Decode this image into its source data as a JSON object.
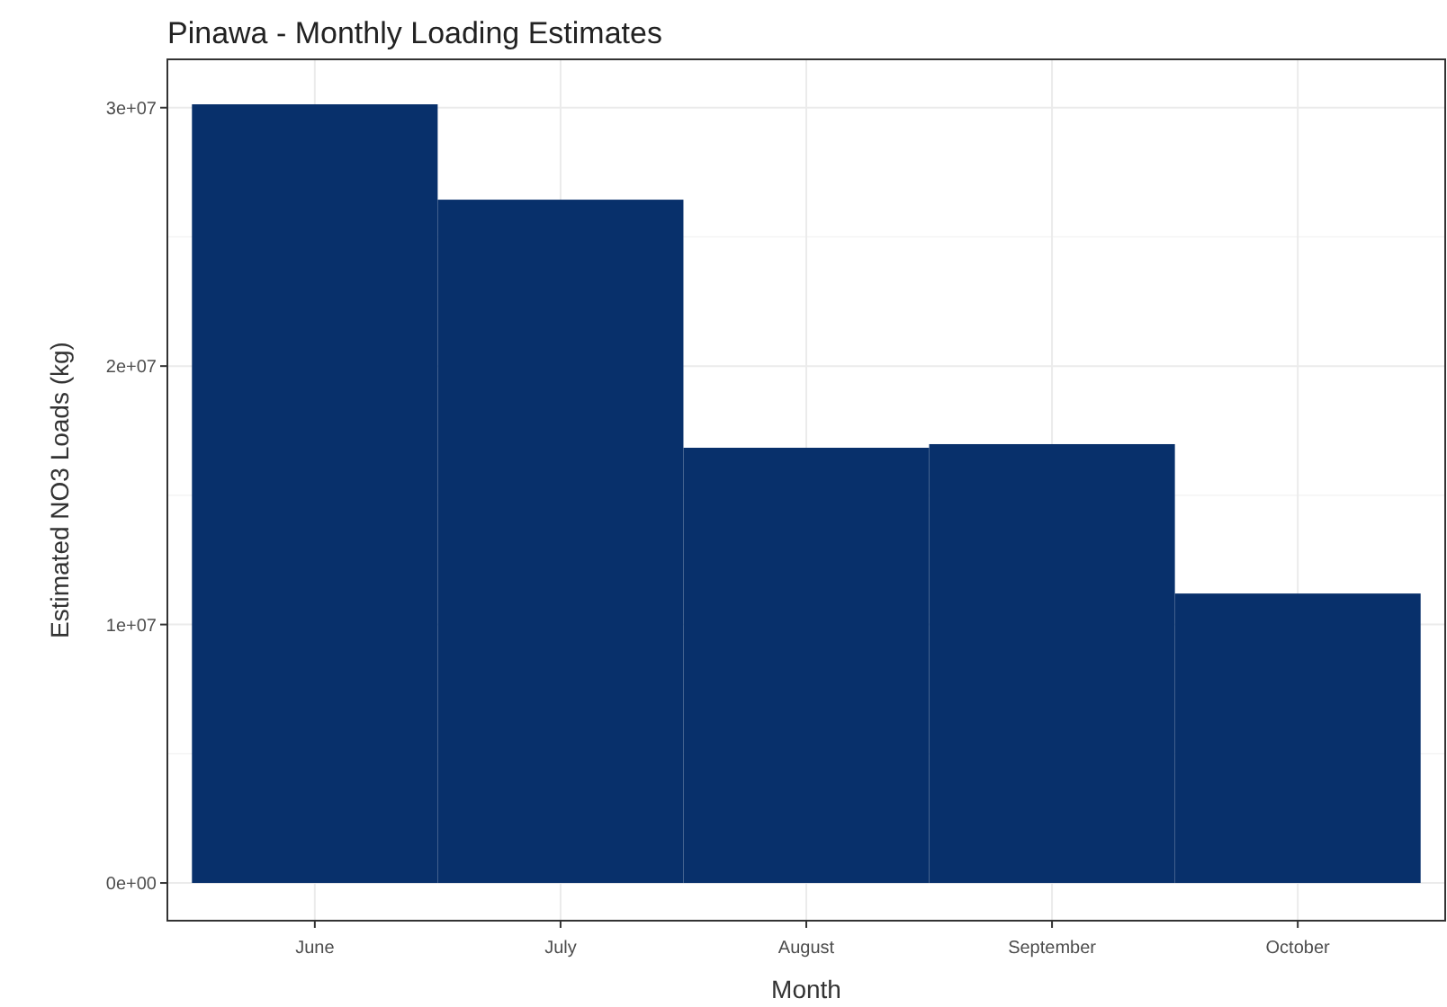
{
  "chart_data": {
    "type": "bar",
    "title": "Pinawa - Monthly Loading Estimates",
    "xlabel": "Month",
    "ylabel": "Estimated NO3 Loads (kg)",
    "categories": [
      "June",
      "July",
      "August",
      "September",
      "October"
    ],
    "values": [
      30130000,
      26440000,
      16840000,
      16980000,
      11200000
    ],
    "color": "#08306b",
    "ylim": [
      -1460000,
      31870000
    ],
    "yticks": [
      {
        "value": 0,
        "label": "0e+00"
      },
      {
        "value": 10000000,
        "label": "1e+07"
      },
      {
        "value": 20000000,
        "label": "2e+07"
      },
      {
        "value": 30000000,
        "label": "3e+07"
      }
    ],
    "grid": true
  }
}
